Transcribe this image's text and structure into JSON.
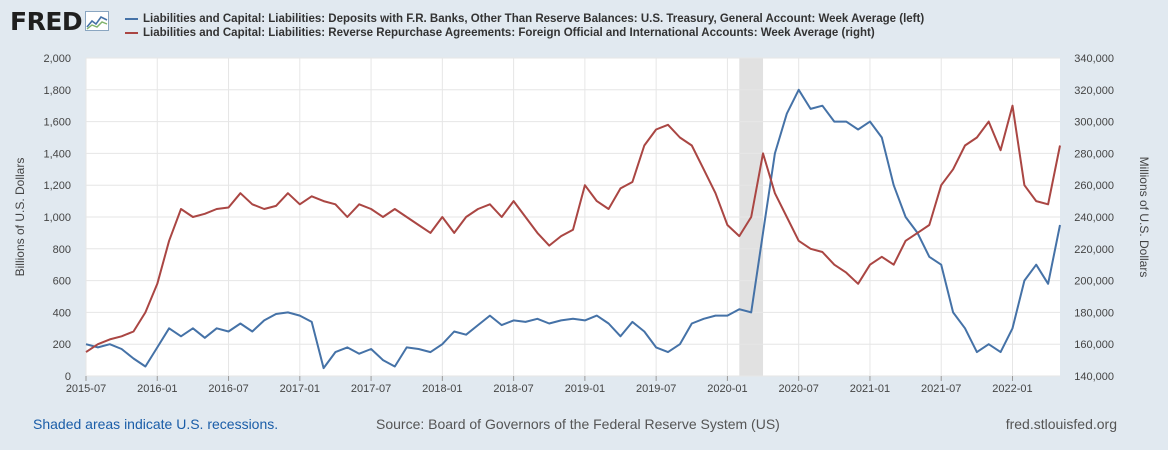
{
  "logo": {
    "text": "FRED"
  },
  "legend": [
    {
      "label": "Liabilities and Capital: Liabilities: Deposits with F.R. Banks, Other Than Reserve Balances: U.S. Treasury, General Account: Week Average (left)",
      "color": "#4572a7"
    },
    {
      "label": "Liabilities and Capital: Liabilities: Reverse Repurchase Agreements: Foreign Official and International Accounts: Week Average (right)",
      "color": "#aa4643"
    }
  ],
  "footer": {
    "recession_note": "Shaded areas indicate U.S. recessions.",
    "source": "Source: Board of Governors of the Federal Reserve System (US)",
    "site": "fred.stlouisfed.org"
  },
  "chart_data": {
    "type": "line",
    "ylabel": "Billions of U.S. Dollars",
    "y2label": "Millions of U.S. Dollars",
    "xlim": [
      "2015-07",
      "2022-05"
    ],
    "ylim": [
      0,
      2000
    ],
    "y2lim": [
      140000,
      340000
    ],
    "xticks": [
      "2015-07",
      "2016-01",
      "2016-07",
      "2017-01",
      "2017-07",
      "2018-01",
      "2018-07",
      "2019-01",
      "2019-07",
      "2020-01",
      "2020-07",
      "2021-01",
      "2021-07",
      "2022-01"
    ],
    "yticks": [
      "0",
      "200",
      "400",
      "600",
      "800",
      "1,000",
      "1,200",
      "1,400",
      "1,600",
      "1,800",
      "2,000"
    ],
    "y2ticks": [
      "140,000",
      "160,000",
      "180,000",
      "200,000",
      "220,000",
      "240,000",
      "260,000",
      "280,000",
      "300,000",
      "320,000",
      "340,000"
    ],
    "recession": {
      "start": "2020-02",
      "end": "2020-04"
    },
    "grid": true,
    "series": [
      {
        "name": "Liabilities and Capital: Liabilities: Deposits with F.R. Banks, Other Than Reserve Balances: U.S. Treasury, General Account: Week Average (left)",
        "axis": "left",
        "color": "#4572a7",
        "points": [
          [
            "2015-07",
            200
          ],
          [
            "2015-08",
            180
          ],
          [
            "2015-09",
            200
          ],
          [
            "2015-10",
            170
          ],
          [
            "2015-11",
            110
          ],
          [
            "2015-12",
            60
          ],
          [
            "2016-01",
            180
          ],
          [
            "2016-02",
            300
          ],
          [
            "2016-03",
            250
          ],
          [
            "2016-04",
            300
          ],
          [
            "2016-05",
            240
          ],
          [
            "2016-06",
            300
          ],
          [
            "2016-07",
            280
          ],
          [
            "2016-08",
            330
          ],
          [
            "2016-09",
            280
          ],
          [
            "2016-10",
            350
          ],
          [
            "2016-11",
            390
          ],
          [
            "2016-12",
            400
          ],
          [
            "2017-01",
            380
          ],
          [
            "2017-02",
            340
          ],
          [
            "2017-03",
            50
          ],
          [
            "2017-04",
            150
          ],
          [
            "2017-05",
            180
          ],
          [
            "2017-06",
            140
          ],
          [
            "2017-07",
            170
          ],
          [
            "2017-08",
            100
          ],
          [
            "2017-09",
            60
          ],
          [
            "2017-10",
            180
          ],
          [
            "2017-11",
            170
          ],
          [
            "2017-12",
            150
          ],
          [
            "2018-01",
            200
          ],
          [
            "2018-02",
            280
          ],
          [
            "2018-03",
            260
          ],
          [
            "2018-04",
            320
          ],
          [
            "2018-05",
            380
          ],
          [
            "2018-06",
            320
          ],
          [
            "2018-07",
            350
          ],
          [
            "2018-08",
            340
          ],
          [
            "2018-09",
            360
          ],
          [
            "2018-10",
            330
          ],
          [
            "2018-11",
            350
          ],
          [
            "2018-12",
            360
          ],
          [
            "2019-01",
            350
          ],
          [
            "2019-02",
            380
          ],
          [
            "2019-03",
            330
          ],
          [
            "2019-04",
            250
          ],
          [
            "2019-05",
            340
          ],
          [
            "2019-06",
            280
          ],
          [
            "2019-07",
            180
          ],
          [
            "2019-08",
            150
          ],
          [
            "2019-09",
            200
          ],
          [
            "2019-10",
            330
          ],
          [
            "2019-11",
            360
          ],
          [
            "2019-12",
            380
          ],
          [
            "2020-01",
            380
          ],
          [
            "2020-02",
            420
          ],
          [
            "2020-03",
            400
          ],
          [
            "2020-04",
            900
          ],
          [
            "2020-05",
            1400
          ],
          [
            "2020-06",
            1650
          ],
          [
            "2020-07",
            1800
          ],
          [
            "2020-08",
            1680
          ],
          [
            "2020-09",
            1700
          ],
          [
            "2020-10",
            1600
          ],
          [
            "2020-11",
            1600
          ],
          [
            "2020-12",
            1550
          ],
          [
            "2021-01",
            1600
          ],
          [
            "2021-02",
            1500
          ],
          [
            "2021-03",
            1200
          ],
          [
            "2021-04",
            1000
          ],
          [
            "2021-05",
            900
          ],
          [
            "2021-06",
            750
          ],
          [
            "2021-07",
            700
          ],
          [
            "2021-08",
            400
          ],
          [
            "2021-09",
            300
          ],
          [
            "2021-10",
            150
          ],
          [
            "2021-11",
            200
          ],
          [
            "2021-12",
            150
          ],
          [
            "2022-01",
            300
          ],
          [
            "2022-02",
            600
          ],
          [
            "2022-03",
            700
          ],
          [
            "2022-04",
            580
          ],
          [
            "2022-05",
            950
          ]
        ]
      },
      {
        "name": "Liabilities and Capital: Liabilities: Reverse Repurchase Agreements: Foreign Official and International Accounts: Week Average (right)",
        "axis": "right",
        "color": "#aa4643",
        "points": [
          [
            "2015-07",
            155000
          ],
          [
            "2015-08",
            160000
          ],
          [
            "2015-09",
            163000
          ],
          [
            "2015-10",
            165000
          ],
          [
            "2015-11",
            168000
          ],
          [
            "2015-12",
            180000
          ],
          [
            "2016-01",
            198000
          ],
          [
            "2016-02",
            225000
          ],
          [
            "2016-03",
            245000
          ],
          [
            "2016-04",
            240000
          ],
          [
            "2016-05",
            242000
          ],
          [
            "2016-06",
            245000
          ],
          [
            "2016-07",
            246000
          ],
          [
            "2016-08",
            255000
          ],
          [
            "2016-09",
            248000
          ],
          [
            "2016-10",
            245000
          ],
          [
            "2016-11",
            247000
          ],
          [
            "2016-12",
            255000
          ],
          [
            "2017-01",
            248000
          ],
          [
            "2017-02",
            253000
          ],
          [
            "2017-03",
            250000
          ],
          [
            "2017-04",
            248000
          ],
          [
            "2017-05",
            240000
          ],
          [
            "2017-06",
            248000
          ],
          [
            "2017-07",
            245000
          ],
          [
            "2017-08",
            240000
          ],
          [
            "2017-09",
            245000
          ],
          [
            "2017-10",
            240000
          ],
          [
            "2017-11",
            235000
          ],
          [
            "2017-12",
            230000
          ],
          [
            "2018-01",
            240000
          ],
          [
            "2018-02",
            230000
          ],
          [
            "2018-03",
            240000
          ],
          [
            "2018-04",
            245000
          ],
          [
            "2018-05",
            248000
          ],
          [
            "2018-06",
            240000
          ],
          [
            "2018-07",
            250000
          ],
          [
            "2018-08",
            240000
          ],
          [
            "2018-09",
            230000
          ],
          [
            "2018-10",
            222000
          ],
          [
            "2018-11",
            228000
          ],
          [
            "2018-12",
            232000
          ],
          [
            "2019-01",
            260000
          ],
          [
            "2019-02",
            250000
          ],
          [
            "2019-03",
            245000
          ],
          [
            "2019-04",
            258000
          ],
          [
            "2019-05",
            262000
          ],
          [
            "2019-06",
            285000
          ],
          [
            "2019-07",
            295000
          ],
          [
            "2019-08",
            298000
          ],
          [
            "2019-09",
            290000
          ],
          [
            "2019-10",
            285000
          ],
          [
            "2019-11",
            270000
          ],
          [
            "2019-12",
            255000
          ],
          [
            "2020-01",
            235000
          ],
          [
            "2020-02",
            228000
          ],
          [
            "2020-03",
            240000
          ],
          [
            "2020-04",
            280000
          ],
          [
            "2020-05",
            255000
          ],
          [
            "2020-06",
            240000
          ],
          [
            "2020-07",
            225000
          ],
          [
            "2020-08",
            220000
          ],
          [
            "2020-09",
            218000
          ],
          [
            "2020-10",
            210000
          ],
          [
            "2020-11",
            205000
          ],
          [
            "2020-12",
            198000
          ],
          [
            "2021-01",
            210000
          ],
          [
            "2021-02",
            215000
          ],
          [
            "2021-03",
            210000
          ],
          [
            "2021-04",
            225000
          ],
          [
            "2021-05",
            230000
          ],
          [
            "2021-06",
            235000
          ],
          [
            "2021-07",
            260000
          ],
          [
            "2021-08",
            270000
          ],
          [
            "2021-09",
            285000
          ],
          [
            "2021-10",
            290000
          ],
          [
            "2021-11",
            300000
          ],
          [
            "2021-12",
            282000
          ],
          [
            "2022-01",
            310000
          ],
          [
            "2022-02",
            260000
          ],
          [
            "2022-03",
            250000
          ],
          [
            "2022-04",
            248000
          ],
          [
            "2022-05",
            285000
          ]
        ]
      }
    ]
  }
}
